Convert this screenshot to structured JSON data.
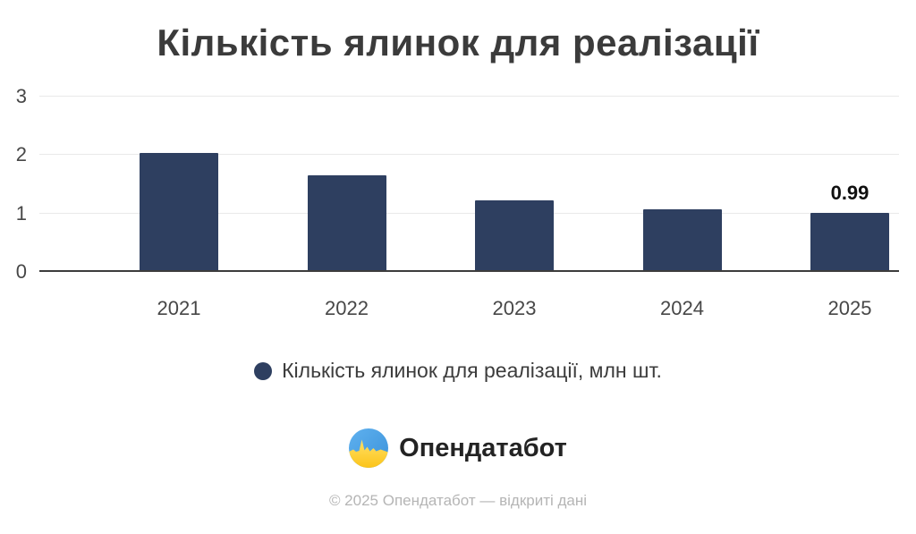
{
  "title": "Кількість ялинок для реалізації",
  "chart_data": {
    "type": "bar",
    "categories": [
      "2021",
      "2022",
      "2023",
      "2024",
      "2025"
    ],
    "values": [
      2.02,
      1.63,
      1.21,
      1.05,
      0.99
    ],
    "point_labels": [
      "",
      "",
      "",
      "",
      "0.99"
    ],
    "title": "Кількість ялинок для реалізації",
    "xlabel": "",
    "ylabel": "",
    "yticks": [
      0,
      1,
      2,
      3
    ],
    "ylim": [
      0,
      3.18
    ],
    "grid": true,
    "legend_position": "bottom",
    "legend_entries": [
      "Кількість ялинок для реалізації, млн шт."
    ],
    "bar_color": "#2e3f60"
  },
  "legend": {
    "label": "Кількість ялинок для реалізації, млн шт.",
    "swatch_color": "#2e3f60"
  },
  "branding": {
    "logo_text": "Опендатабот",
    "logo_blue": "#47a0e6",
    "logo_yellow": "#ffd43d"
  },
  "footer": {
    "text": "© 2025 Опендатабот — відкриті дані"
  },
  "colors": {
    "axis_line": "#3c3c3c",
    "gridline": "#e9e9e9",
    "tick_label": "#474747",
    "title_text": "#3b3b3b"
  }
}
